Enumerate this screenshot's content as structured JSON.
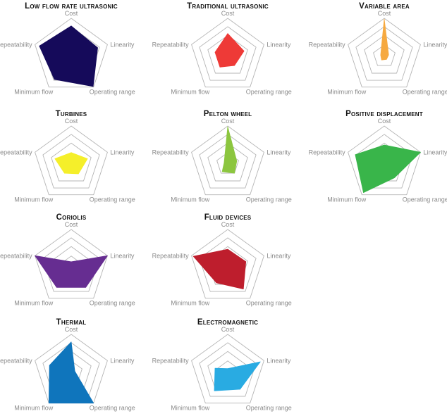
{
  "axes": [
    "Cost",
    "Linearity",
    "Operating range",
    "Minimum flow",
    "Repeatability"
  ],
  "chart_data": [
    {
      "type": "radar",
      "title": "Low flow rate ultrasonic",
      "color": "#150a5a",
      "values": [
        0.8,
        0.73,
        0.98,
        0.75,
        0.88
      ]
    },
    {
      "type": "radar",
      "title": "Traditional ultrasonic",
      "color": "#ee3a37",
      "values": [
        0.6,
        0.45,
        0.3,
        0.35,
        0.35
      ]
    },
    {
      "type": "radar",
      "title": "Variable area",
      "color": "#f6a940",
      "values": [
        0.98,
        0.12,
        0.1,
        0.12,
        0.1
      ]
    },
    {
      "type": "radar",
      "title": "Turbines",
      "color": "#f5ef2a",
      "values": [
        0.3,
        0.45,
        0.32,
        0.3,
        0.45
      ]
    },
    {
      "type": "radar",
      "title": "Pelton wheel",
      "color": "#8cc63f",
      "values": [
        0.98,
        0.25,
        0.3,
        0.25,
        0.1
      ]
    },
    {
      "type": "radar",
      "title": "Positive displacement",
      "color": "#39b54a",
      "values": [
        0.5,
        1.0,
        0.45,
        0.93,
        0.8
      ]
    },
    {
      "type": "radar",
      "title": "Coriolis",
      "color": "#662d91",
      "values": [
        0.15,
        1.0,
        0.65,
        0.65,
        1.0
      ]
    },
    {
      "type": "radar",
      "title": "Fluid devices",
      "color": "#be1e2d",
      "values": [
        0.48,
        0.5,
        0.7,
        0.5,
        0.95
      ]
    },
    {
      "type": "radar",
      "title": "Thermal",
      "color": "#0f75bc",
      "values": [
        0.8,
        0.1,
        1.0,
        1.0,
        0.6
      ]
    },
    {
      "type": "radar",
      "title": "Electromagnetic",
      "color": "#29abe2",
      "values": [
        0.1,
        0.9,
        0.55,
        0.6,
        0.35
      ]
    }
  ]
}
